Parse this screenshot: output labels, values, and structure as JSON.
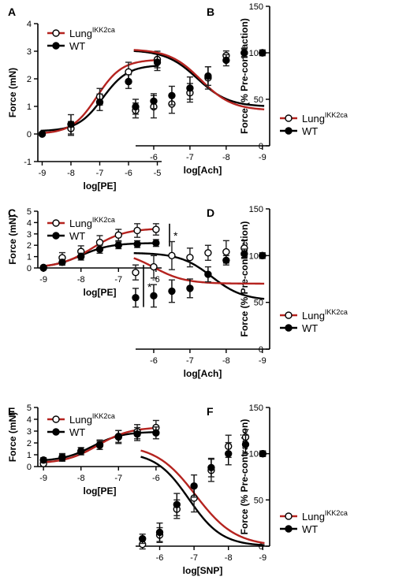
{
  "colors": {
    "lung": "#b5231f",
    "wt": "#000000"
  },
  "chart_data": [
    {
      "letter": "A",
      "type": "line",
      "xlabel": "log[PE]",
      "ylabel": "Force (mN)",
      "xlim": [
        -9.15,
        -4.85
      ],
      "ylim": [
        -1,
        4
      ],
      "xticks": [
        -9,
        -8,
        -7,
        -6,
        -5
      ],
      "yticks": [
        -1,
        0,
        1,
        2,
        3,
        4
      ],
      "legend": {
        "position": "top-left",
        "items": [
          {
            "series": "lung",
            "base": "Lung",
            "sup": "IKK2ca",
            "marker": "open-circle"
          },
          {
            "series": "wt",
            "base": "WT",
            "sup": "",
            "marker": "filled-circle"
          }
        ]
      },
      "series": [
        {
          "key": "lung",
          "bottom": 0.0,
          "top": 2.7,
          "logEC50": -7.1,
          "hill": 1.0,
          "x": [
            -9,
            -8,
            -7,
            -6,
            -5
          ],
          "y": [
            0.0,
            0.2,
            1.35,
            2.25,
            2.7
          ],
          "err": [
            0.05,
            0.25,
            0.3,
            0.35,
            0.3
          ]
        },
        {
          "key": "wt",
          "bottom": 0.1,
          "top": 2.5,
          "logEC50": -6.9,
          "hill": 1.0,
          "x": [
            -9,
            -8,
            -7,
            -6,
            -5
          ],
          "y": [
            0.0,
            0.35,
            1.15,
            1.9,
            2.6
          ],
          "err": [
            0.05,
            0.35,
            0.3,
            0.25,
            0.3
          ]
        }
      ],
      "significance": null
    },
    {
      "letter": "B",
      "type": "line",
      "xlabel": "log[Ach]",
      "ylabel": "Force (% Pre-contraction)",
      "xlim": [
        -9.2,
        -5.5
      ],
      "ylim": [
        0,
        150
      ],
      "xticks": [
        -9,
        -8,
        -7,
        -6
      ],
      "yticks": [
        0,
        50,
        100,
        150
      ],
      "legend": {
        "position": "bottom-left",
        "items": [
          {
            "series": "lung",
            "base": "Lung",
            "sup": "IKK2ca",
            "marker": "open-circle"
          },
          {
            "series": "wt",
            "base": "WT",
            "sup": "",
            "marker": "filled-circle"
          }
        ]
      },
      "series": [
        {
          "key": "lung",
          "bottom": 38,
          "top": 104,
          "logEC50": -7.3,
          "hill": 1.0,
          "x": [
            -9,
            -8.5,
            -8,
            -7.5,
            -7,
            -6.5,
            -6,
            -5.5
          ],
          "y": [
            100,
            100,
            97,
            73,
            57,
            45,
            42,
            38
          ],
          "err": [
            3,
            5,
            5,
            12,
            10,
            10,
            12,
            8
          ]
        },
        {
          "key": "wt",
          "bottom": 42,
          "top": 103,
          "logEC50": -7.2,
          "hill": 1.0,
          "x": [
            -9,
            -8.5,
            -8,
            -7.5,
            -7,
            -6.5,
            -6,
            -5.5
          ],
          "y": [
            100,
            100,
            92,
            75,
            62,
            54,
            48,
            42
          ],
          "err": [
            3,
            4,
            6,
            10,
            12,
            10,
            8,
            8
          ]
        }
      ],
      "significance": null
    },
    {
      "letter": "C",
      "type": "line",
      "xlabel": "log[PE]",
      "ylabel": "Force (mN)",
      "xlim": [
        -9.15,
        -5.85
      ],
      "ylim": [
        0,
        5
      ],
      "xticks": [
        -9,
        -8,
        -7,
        -6
      ],
      "yticks": [
        0,
        1,
        2,
        3,
        4,
        5
      ],
      "legend": {
        "position": "top-left",
        "items": [
          {
            "series": "lung",
            "base": "Lung",
            "sup": "IKK2ca",
            "marker": "open-circle"
          },
          {
            "series": "wt",
            "base": "WT",
            "sup": "",
            "marker": "filled-circle"
          }
        ]
      },
      "series": [
        {
          "key": "lung",
          "bottom": 0.0,
          "top": 3.5,
          "logEC50": -7.7,
          "hill": 1.0,
          "x": [
            -9,
            -8.5,
            -8,
            -7.5,
            -7,
            -6.5,
            -6
          ],
          "y": [
            0.05,
            0.9,
            1.45,
            2.25,
            2.9,
            3.3,
            3.4
          ],
          "err": [
            0.1,
            0.45,
            0.5,
            0.6,
            0.5,
            0.6,
            0.5
          ]
        },
        {
          "key": "wt",
          "bottom": 0.0,
          "top": 2.2,
          "logEC50": -8.0,
          "hill": 1.1,
          "x": [
            -9,
            -8.5,
            -8,
            -7.5,
            -7,
            -6.5,
            -6
          ],
          "y": [
            0.0,
            0.5,
            1.0,
            1.65,
            2.0,
            2.1,
            2.2
          ],
          "err": [
            0.1,
            0.25,
            0.3,
            0.35,
            0.3,
            0.3,
            0.3
          ]
        }
      ],
      "significance": "*"
    },
    {
      "letter": "D",
      "type": "line",
      "xlabel": "log[Ach]",
      "ylabel": "Force (% Pre-contraction)",
      "xlim": [
        -9.2,
        -5.5
      ],
      "ylim": [
        0,
        150
      ],
      "xticks": [
        -9,
        -8,
        -7,
        -6
      ],
      "yticks": [
        0,
        50,
        100,
        150
      ],
      "legend": {
        "position": "bottom-left",
        "items": [
          {
            "series": "lung",
            "base": "Lung",
            "sup": "IKK2ca",
            "marker": "open-circle"
          },
          {
            "series": "wt",
            "base": "WT",
            "sup": "",
            "marker": "filled-circle"
          }
        ]
      },
      "series": [
        {
          "key": "lung",
          "bottom": 70,
          "top": 105,
          "logEC50": -6.0,
          "hill": 1.0,
          "x": [
            -9,
            -8.5,
            -8,
            -7.5,
            -7,
            -6.5,
            -6,
            -5.5
          ],
          "y": [
            100,
            108,
            104,
            103,
            98,
            100,
            88,
            82
          ],
          "err": [
            3,
            8,
            12,
            8,
            10,
            15,
            12,
            8
          ]
        },
        {
          "key": "wt",
          "bottom": 52,
          "top": 103,
          "logEC50": -7.6,
          "hill": 1.0,
          "x": [
            -9,
            -8.5,
            -8,
            -7.5,
            -7,
            -6.5,
            -6,
            -5.5
          ],
          "y": [
            100,
            102,
            95,
            80,
            65,
            62,
            57,
            55
          ],
          "err": [
            3,
            5,
            5,
            8,
            10,
            12,
            12,
            10
          ]
        }
      ],
      "significance": "*"
    },
    {
      "letter": "E",
      "type": "line",
      "xlabel": "log[PE]",
      "ylabel": "Force (mN)",
      "xlim": [
        -9.15,
        -5.85
      ],
      "ylim": [
        0,
        5
      ],
      "xticks": [
        -9,
        -8,
        -7,
        -6
      ],
      "yticks": [
        0,
        1,
        2,
        3,
        4,
        5
      ],
      "legend": {
        "position": "top-left",
        "items": [
          {
            "series": "lung",
            "base": "Lung",
            "sup": "IKK2ca",
            "marker": "open-circle"
          },
          {
            "series": "wt",
            "base": "WT",
            "sup": "",
            "marker": "filled-circle"
          }
        ]
      },
      "series": [
        {
          "key": "lung",
          "bottom": 0.25,
          "top": 3.35,
          "logEC50": -7.55,
          "hill": 1.0,
          "x": [
            -9,
            -8.5,
            -8,
            -7.5,
            -7,
            -6.5,
            -6
          ],
          "y": [
            0.25,
            0.8,
            1.3,
            1.85,
            2.5,
            2.95,
            3.3
          ],
          "err": [
            0.2,
            0.3,
            0.3,
            0.4,
            0.55,
            0.6,
            0.6
          ]
        },
        {
          "key": "wt",
          "bottom": 0.45,
          "top": 2.95,
          "logEC50": -7.7,
          "hill": 1.1,
          "x": [
            -9,
            -8.5,
            -8,
            -7.5,
            -7,
            -6.5,
            -6
          ],
          "y": [
            0.55,
            0.75,
            1.3,
            1.8,
            2.55,
            2.75,
            2.85
          ],
          "err": [
            0.2,
            0.3,
            0.3,
            0.35,
            0.5,
            0.55,
            0.5
          ]
        }
      ],
      "significance": null
    },
    {
      "letter": "F",
      "type": "line",
      "xlabel": "log[SNP]",
      "ylabel": "Force (% Pre-contraction)",
      "xlim": [
        -9.2,
        -5.3
      ],
      "ylim": [
        0,
        150
      ],
      "xticks": [
        -9,
        -8,
        -7,
        -6
      ],
      "yticks": [
        0,
        50,
        100,
        150
      ],
      "legend": {
        "position": "bottom-left",
        "items": [
          {
            "series": "lung",
            "base": "Lung",
            "sup": "IKK2ca",
            "marker": "open-circle"
          },
          {
            "series": "wt",
            "base": "WT",
            "sup": "",
            "marker": "filled-circle"
          }
        ]
      },
      "series": [
        {
          "key": "lung",
          "bottom": 0,
          "top": 110,
          "logEC50": -7.05,
          "hill": 0.75,
          "x": [
            -9,
            -8.5,
            -8,
            -7.5,
            -7,
            -6.5,
            -6,
            -5.5
          ],
          "y": [
            100,
            118,
            108,
            82,
            52,
            40,
            12,
            2
          ],
          "err": [
            3,
            8,
            12,
            12,
            15,
            10,
            8,
            5
          ]
        },
        {
          "key": "wt",
          "bottom": 0,
          "top": 102,
          "logEC50": -6.85,
          "hill": 0.9,
          "x": [
            -9,
            -8.5,
            -8,
            -7.5,
            -7,
            -6.5,
            -6,
            -5.5
          ],
          "y": [
            100,
            110,
            100,
            85,
            65,
            45,
            15,
            8
          ],
          "err": [
            3,
            10,
            12,
            10,
            12,
            12,
            10,
            5
          ]
        }
      ],
      "significance": null
    }
  ]
}
